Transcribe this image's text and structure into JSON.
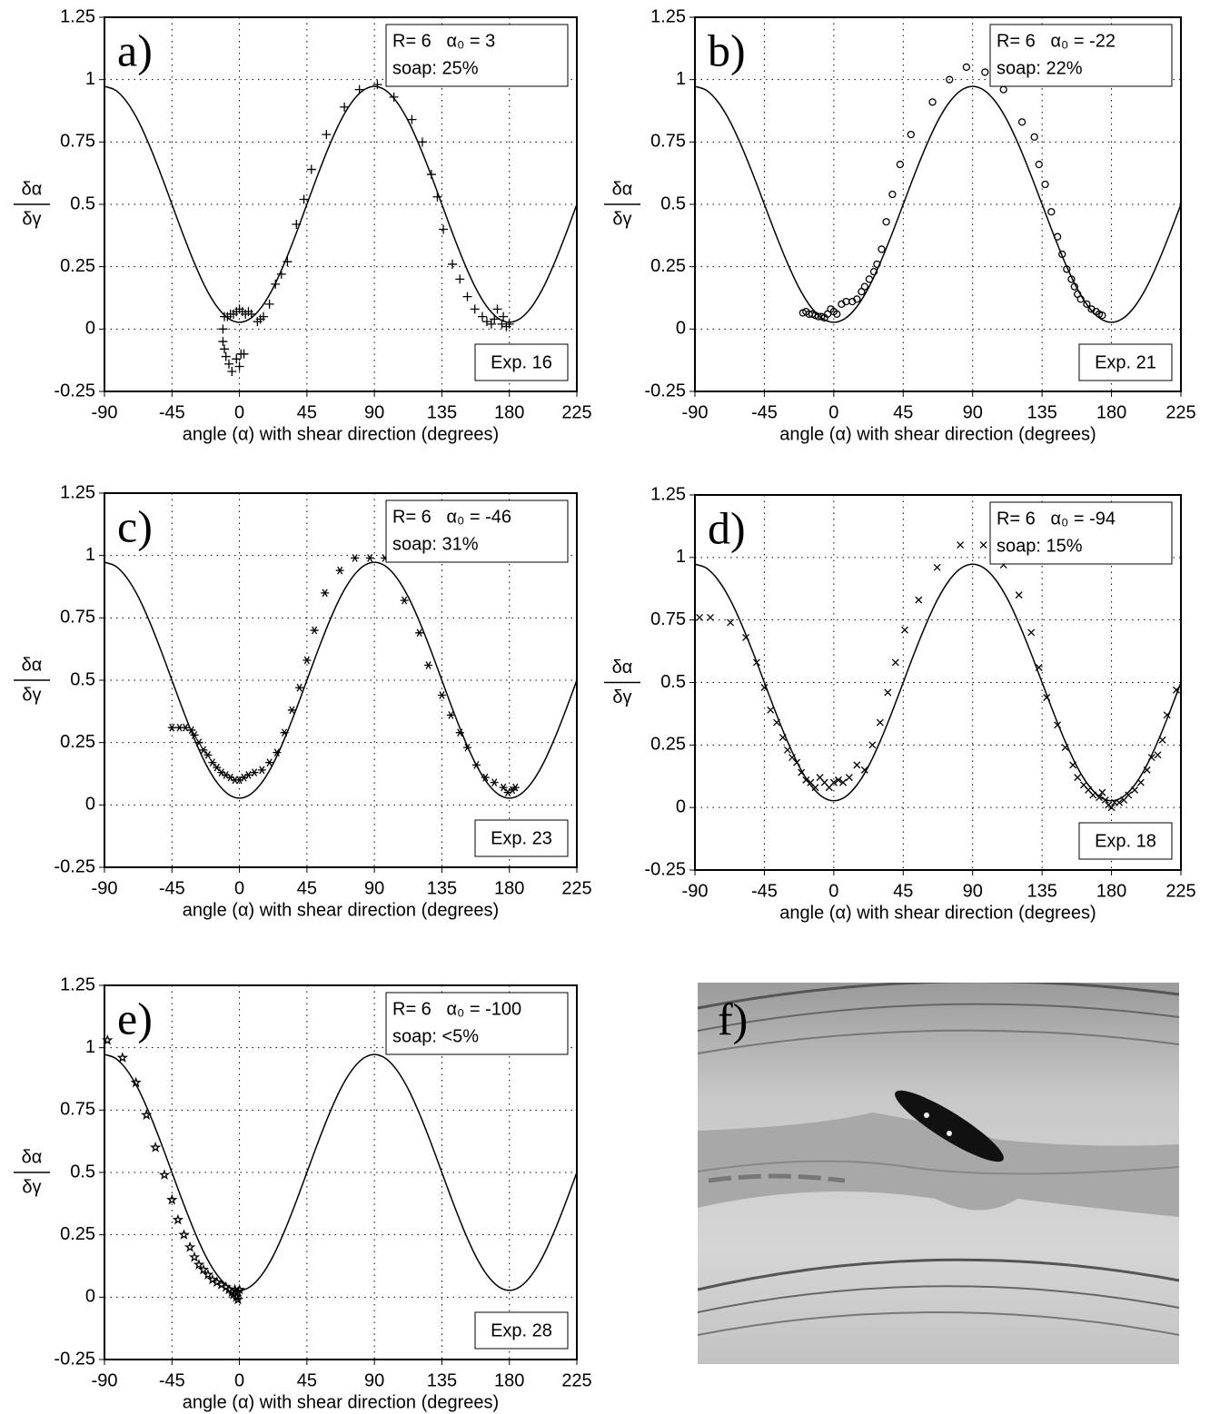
{
  "chart_data": [
    {
      "type": "scatter",
      "panel_label": "a)",
      "params": "R= 6   α₀ = 3",
      "soap": "soap: 25%",
      "experiment": "Exp. 16",
      "xlabel": "angle (α) with shear direction (degrees)",
      "ylabel_numerator": "δα",
      "ylabel_denominator": "δγ",
      "xlim": [
        -90,
        225
      ],
      "xticks": [
        -90,
        -45,
        0,
        45,
        90,
        135,
        180,
        225
      ],
      "ylim": [
        -0.25,
        1.25
      ],
      "yticks": [
        -0.25,
        0,
        0.25,
        0.5,
        0.75,
        1,
        1.25
      ],
      "grid": true,
      "marker": "plus",
      "color": "#000000",
      "curve": {
        "x": [
          -90,
          -82.5,
          -75,
          -67.5,
          -60,
          -52.5,
          -45,
          -37.5,
          -30,
          -22.5,
          -15,
          -7.5,
          0,
          7.5,
          15,
          22.5,
          30,
          37.5,
          45,
          52.5,
          60,
          67.5,
          75,
          82.5,
          90,
          97.5,
          105,
          112.5,
          120,
          127.5,
          135,
          142.5,
          150,
          157.5,
          165,
          172.5,
          180,
          187.5,
          195,
          202.5,
          210,
          217.5,
          225
        ],
        "values": [
          0.973,
          0.957,
          0.91,
          0.835,
          0.736,
          0.622,
          0.5,
          0.378,
          0.264,
          0.165,
          0.09,
          0.043,
          0.027,
          0.043,
          0.09,
          0.165,
          0.264,
          0.378,
          0.5,
          0.622,
          0.736,
          0.835,
          0.91,
          0.957,
          0.973,
          0.957,
          0.91,
          0.835,
          0.736,
          0.622,
          0.5,
          0.378,
          0.264,
          0.165,
          0.09,
          0.043,
          0.027,
          0.043,
          0.09,
          0.165,
          0.264,
          0.378,
          0.5
        ]
      },
      "points": {
        "x": [
          -10,
          -8,
          -6,
          -4,
          -2,
          0,
          2,
          4,
          6,
          8,
          -11,
          -11,
          -10,
          -9,
          -7,
          -5,
          -2,
          0,
          1,
          3,
          12,
          14,
          16,
          20,
          24,
          28,
          32,
          38,
          43,
          48,
          58,
          70,
          80,
          92,
          103,
          115,
          122,
          128,
          132,
          136,
          142,
          147,
          152,
          157,
          162,
          165,
          168,
          170,
          172,
          175,
          178,
          180,
          176
        ],
        "values": [
          0.05,
          0.05,
          0.06,
          0.06,
          0.07,
          0.08,
          0.07,
          0.06,
          0.07,
          0.06,
          0.0,
          -0.05,
          -0.08,
          -0.11,
          -0.14,
          -0.17,
          -0.12,
          -0.15,
          -0.1,
          -0.1,
          0.03,
          0.04,
          0.05,
          0.1,
          0.18,
          0.22,
          0.27,
          0.42,
          0.52,
          0.64,
          0.78,
          0.89,
          0.96,
          0.98,
          0.93,
          0.84,
          0.75,
          0.62,
          0.53,
          0.4,
          0.26,
          0.2,
          0.13,
          0.08,
          0.05,
          0.03,
          0.02,
          0.04,
          0.08,
          0.02,
          0.01,
          0.02,
          0.05
        ]
      }
    },
    {
      "type": "scatter",
      "panel_label": "b)",
      "params": "R= 6   α₀ = -22",
      "soap": "soap: 22%",
      "experiment": "Exp. 21",
      "xlabel": "angle (α) with shear direction (degrees)",
      "ylabel_numerator": "δα",
      "ylabel_denominator": "δγ",
      "xlim": [
        -90,
        225
      ],
      "xticks": [
        -90,
        -45,
        0,
        45,
        90,
        135,
        180,
        225
      ],
      "ylim": [
        -0.25,
        1.25
      ],
      "yticks": [
        -0.25,
        0,
        0.25,
        0.5,
        0.75,
        1,
        1.25
      ],
      "grid": true,
      "marker": "circle",
      "color": "#000000",
      "curve": {
        "x": [
          -90,
          -82.5,
          -75,
          -67.5,
          -60,
          -52.5,
          -45,
          -37.5,
          -30,
          -22.5,
          -15,
          -7.5,
          0,
          7.5,
          15,
          22.5,
          30,
          37.5,
          45,
          52.5,
          60,
          67.5,
          75,
          82.5,
          90,
          97.5,
          105,
          112.5,
          120,
          127.5,
          135,
          142.5,
          150,
          157.5,
          165,
          172.5,
          180,
          187.5,
          195,
          202.5,
          210,
          217.5,
          225
        ],
        "values": [
          0.973,
          0.957,
          0.91,
          0.835,
          0.736,
          0.622,
          0.5,
          0.378,
          0.264,
          0.165,
          0.09,
          0.043,
          0.027,
          0.043,
          0.09,
          0.165,
          0.264,
          0.378,
          0.5,
          0.622,
          0.736,
          0.835,
          0.91,
          0.957,
          0.973,
          0.957,
          0.91,
          0.835,
          0.736,
          0.622,
          0.5,
          0.378,
          0.264,
          0.165,
          0.09,
          0.043,
          0.027,
          0.043,
          0.09,
          0.165,
          0.264,
          0.378,
          0.5
        ]
      },
      "points": {
        "x": [
          -20,
          -18,
          -16,
          -14,
          -12,
          -10,
          -8,
          -6,
          -4,
          -2,
          0,
          2,
          5,
          8,
          12,
          15,
          18,
          20,
          23,
          26,
          28,
          31,
          34,
          38,
          43,
          50,
          64,
          75,
          86,
          98,
          110,
          122,
          130,
          133,
          137,
          141,
          145,
          148,
          151,
          154,
          156,
          158,
          160,
          164,
          167,
          170,
          172,
          174
        ],
        "values": [
          0.065,
          0.07,
          0.06,
          0.06,
          0.055,
          0.05,
          0.05,
          0.045,
          0.06,
          0.08,
          0.07,
          0.06,
          0.1,
          0.11,
          0.11,
          0.12,
          0.15,
          0.17,
          0.2,
          0.23,
          0.26,
          0.32,
          0.43,
          0.54,
          0.66,
          0.78,
          0.91,
          1.0,
          1.05,
          1.03,
          0.96,
          0.83,
          0.77,
          0.66,
          0.58,
          0.47,
          0.37,
          0.3,
          0.24,
          0.2,
          0.17,
          0.14,
          0.12,
          0.1,
          0.08,
          0.07,
          0.06,
          0.055
        ]
      }
    },
    {
      "type": "scatter",
      "panel_label": "c)",
      "params": "R= 6   α₀ = -46",
      "soap": "soap: 31%",
      "experiment": "Exp. 23",
      "xlabel": "angle (α) with shear direction (degrees)",
      "ylabel_numerator": "δα",
      "ylabel_denominator": "δγ",
      "xlim": [
        -90,
        225
      ],
      "xticks": [
        -90,
        -45,
        0,
        45,
        90,
        135,
        180,
        225
      ],
      "ylim": [
        -0.25,
        1.25
      ],
      "yticks": [
        -0.25,
        0,
        0.25,
        0.5,
        0.75,
        1,
        1.25
      ],
      "grid": true,
      "marker": "asterisk",
      "color": "#000000",
      "curve": {
        "x": [
          -90,
          -82.5,
          -75,
          -67.5,
          -60,
          -52.5,
          -45,
          -37.5,
          -30,
          -22.5,
          -15,
          -7.5,
          0,
          7.5,
          15,
          22.5,
          30,
          37.5,
          45,
          52.5,
          60,
          67.5,
          75,
          82.5,
          90,
          97.5,
          105,
          112.5,
          120,
          127.5,
          135,
          142.5,
          150,
          157.5,
          165,
          172.5,
          180,
          187.5,
          195,
          202.5,
          210,
          217.5,
          225
        ],
        "values": [
          0.973,
          0.957,
          0.91,
          0.835,
          0.736,
          0.622,
          0.5,
          0.378,
          0.264,
          0.165,
          0.09,
          0.043,
          0.027,
          0.043,
          0.09,
          0.165,
          0.264,
          0.378,
          0.5,
          0.622,
          0.736,
          0.835,
          0.91,
          0.957,
          0.973,
          0.957,
          0.91,
          0.835,
          0.736,
          0.622,
          0.5,
          0.378,
          0.264,
          0.165,
          0.09,
          0.043,
          0.027,
          0.043,
          0.09,
          0.165,
          0.264,
          0.378,
          0.5
        ]
      },
      "points": {
        "x": [
          -45,
          -40,
          -36,
          -32,
          -30,
          -27,
          -24,
          -21,
          -18,
          -15,
          -12,
          -9,
          -6,
          -3,
          0,
          3,
          6,
          10,
          15,
          20,
          25,
          30,
          35,
          40,
          45,
          50,
          57,
          67,
          77,
          87,
          97,
          110,
          120,
          126,
          135,
          141,
          147,
          152,
          158,
          164,
          170,
          176,
          179,
          182,
          184
        ],
        "values": [
          0.31,
          0.31,
          0.31,
          0.3,
          0.28,
          0.25,
          0.22,
          0.2,
          0.17,
          0.15,
          0.13,
          0.12,
          0.11,
          0.1,
          0.1,
          0.11,
          0.12,
          0.13,
          0.14,
          0.17,
          0.21,
          0.29,
          0.38,
          0.47,
          0.58,
          0.7,
          0.85,
          0.94,
          0.99,
          0.99,
          0.99,
          0.82,
          0.69,
          0.56,
          0.44,
          0.36,
          0.29,
          0.23,
          0.16,
          0.11,
          0.09,
          0.07,
          0.05,
          0.06,
          0.07
        ]
      }
    },
    {
      "type": "scatter",
      "panel_label": "d)",
      "params": "R= 6   α₀ = -94",
      "soap": "soap: 15%",
      "experiment": "Exp. 18",
      "xlabel": "angle (α) with shear direction (degrees)",
      "ylabel_numerator": "δα",
      "ylabel_denominator": "δγ",
      "xlim": [
        -90,
        225
      ],
      "xticks": [
        -90,
        -45,
        0,
        45,
        90,
        135,
        180,
        225
      ],
      "ylim": [
        -0.25,
        1.25
      ],
      "yticks": [
        -0.25,
        0,
        0.25,
        0.5,
        0.75,
        1,
        1.25
      ],
      "grid": true,
      "marker": "cross",
      "color": "#000000",
      "curve": {
        "x": [
          -90,
          -82.5,
          -75,
          -67.5,
          -60,
          -52.5,
          -45,
          -37.5,
          -30,
          -22.5,
          -15,
          -7.5,
          0,
          7.5,
          15,
          22.5,
          30,
          37.5,
          45,
          52.5,
          60,
          67.5,
          75,
          82.5,
          90,
          97.5,
          105,
          112.5,
          120,
          127.5,
          135,
          142.5,
          150,
          157.5,
          165,
          172.5,
          180,
          187.5,
          195,
          202.5,
          210,
          217.5,
          225
        ],
        "values": [
          0.973,
          0.957,
          0.91,
          0.835,
          0.736,
          0.622,
          0.5,
          0.378,
          0.264,
          0.165,
          0.09,
          0.043,
          0.027,
          0.043,
          0.09,
          0.165,
          0.264,
          0.378,
          0.5,
          0.622,
          0.736,
          0.835,
          0.91,
          0.957,
          0.973,
          0.957,
          0.91,
          0.835,
          0.736,
          0.622,
          0.5,
          0.378,
          0.264,
          0.165,
          0.09,
          0.043,
          0.027,
          0.043,
          0.09,
          0.165,
          0.264,
          0.378,
          0.5
        ]
      },
      "points": {
        "x": [
          -87,
          -80,
          -67,
          -57,
          -50,
          -45,
          -41,
          -37,
          -33,
          -30,
          -27,
          -24,
          -21,
          -18,
          -15,
          -12,
          -9,
          -6,
          -3,
          0,
          3,
          6,
          10,
          15,
          20,
          25,
          30,
          35,
          40,
          46,
          55,
          67,
          82,
          97,
          110,
          120,
          128,
          133,
          138,
          145,
          150,
          155,
          158,
          162,
          165,
          168,
          172,
          174,
          176,
          178,
          180,
          182,
          185,
          188,
          191,
          195,
          199,
          203,
          206,
          210,
          213,
          216,
          222
        ],
        "values": [
          0.76,
          0.76,
          0.74,
          0.68,
          0.58,
          0.48,
          0.39,
          0.34,
          0.28,
          0.23,
          0.2,
          0.18,
          0.14,
          0.11,
          0.1,
          0.08,
          0.12,
          0.1,
          0.08,
          0.1,
          0.11,
          0.1,
          0.12,
          0.17,
          0.15,
          0.25,
          0.34,
          0.46,
          0.58,
          0.71,
          0.83,
          0.96,
          1.05,
          1.05,
          0.97,
          0.85,
          0.7,
          0.56,
          0.44,
          0.33,
          0.24,
          0.17,
          0.12,
          0.09,
          0.07,
          0.05,
          0.04,
          0.06,
          0.03,
          0.01,
          0.0,
          0.02,
          0.02,
          0.03,
          0.05,
          0.07,
          0.1,
          0.15,
          0.2,
          0.21,
          0.27,
          0.37,
          0.47
        ]
      }
    },
    {
      "type": "scatter",
      "panel_label": "e)",
      "params": "R= 6   α₀ = -100",
      "soap": "soap: <5%",
      "experiment": "Exp. 28",
      "xlabel": "angle (α) with shear direction (degrees)",
      "ylabel_numerator": "δα",
      "ylabel_denominator": "δγ",
      "xlim": [
        -90,
        225
      ],
      "xticks": [
        -90,
        -45,
        0,
        45,
        90,
        135,
        180,
        225
      ],
      "ylim": [
        -0.25,
        1.25
      ],
      "yticks": [
        -0.25,
        0,
        0.25,
        0.5,
        0.75,
        1,
        1.25
      ],
      "grid": true,
      "marker": "star",
      "color": "#000000",
      "curve": {
        "x": [
          -90,
          -82.5,
          -75,
          -67.5,
          -60,
          -52.5,
          -45,
          -37.5,
          -30,
          -22.5,
          -15,
          -7.5,
          0,
          7.5,
          15,
          22.5,
          30,
          37.5,
          45,
          52.5,
          60,
          67.5,
          75,
          82.5,
          90,
          97.5,
          105,
          112.5,
          120,
          127.5,
          135,
          142.5,
          150,
          157.5,
          165,
          172.5,
          180,
          187.5,
          195,
          202.5,
          210,
          217.5,
          225
        ],
        "values": [
          0.973,
          0.957,
          0.91,
          0.835,
          0.736,
          0.622,
          0.5,
          0.378,
          0.264,
          0.165,
          0.09,
          0.043,
          0.027,
          0.043,
          0.09,
          0.165,
          0.264,
          0.378,
          0.5,
          0.622,
          0.736,
          0.835,
          0.91,
          0.957,
          0.973,
          0.957,
          0.91,
          0.835,
          0.736,
          0.622,
          0.5,
          0.378,
          0.264,
          0.165,
          0.09,
          0.043,
          0.027,
          0.043,
          0.09,
          0.165,
          0.264,
          0.378,
          0.5
        ]
      },
      "points": {
        "x": [
          -88,
          -78,
          -69,
          -62,
          -56,
          -50,
          -45,
          -41,
          -37,
          -33,
          -30,
          -27,
          -24,
          -21,
          -18,
          -15,
          -12,
          -9,
          -7,
          -5,
          -4,
          -2,
          -1,
          0,
          -3,
          -1
        ],
        "values": [
          1.03,
          0.96,
          0.86,
          0.73,
          0.6,
          0.49,
          0.39,
          0.31,
          0.25,
          0.2,
          0.16,
          0.13,
          0.11,
          0.09,
          0.07,
          0.06,
          0.05,
          0.04,
          0.03,
          0.02,
          0.01,
          0.0,
          0.02,
          0.03,
          0.03,
          -0.01
        ]
      }
    }
  ],
  "image_panel": {
    "label": "f)"
  }
}
